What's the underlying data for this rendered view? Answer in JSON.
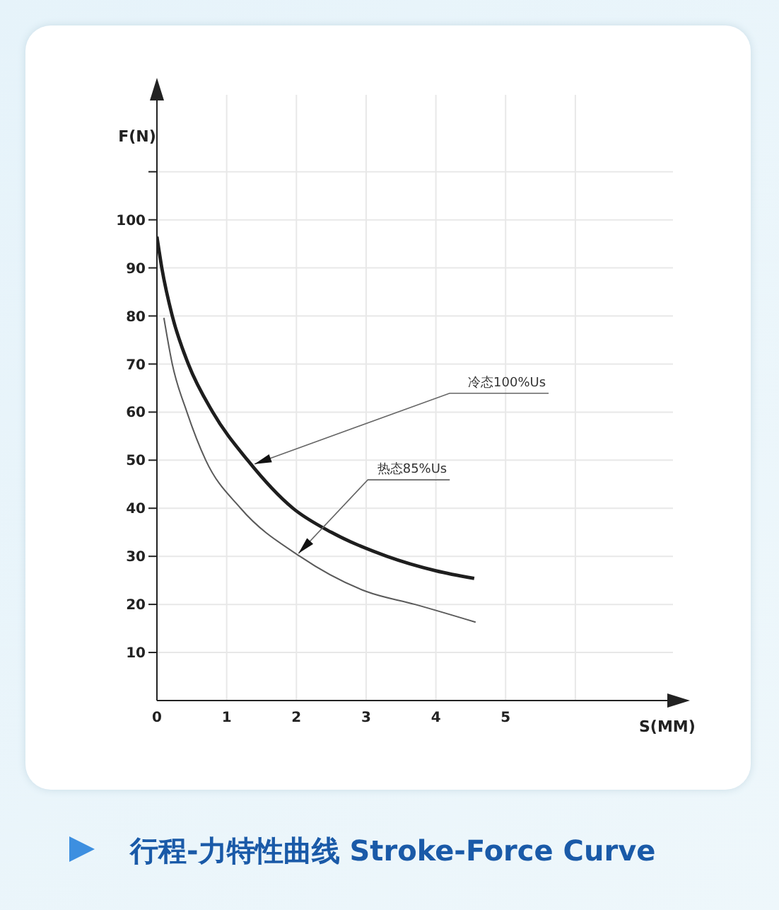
{
  "chart_data": {
    "type": "line",
    "title": "行程-力特性曲线 Stroke-Force Curve",
    "xlabel": "S(MM)",
    "ylabel": "F(N)",
    "series": [
      {
        "color": "#1e1e1e",
        "x": [
          0,
          0.07,
          0.22,
          0.45,
          0.8,
          1.3,
          1.95,
          2.5,
          3.3,
          4,
          4.55
        ],
        "values": [
          96.5,
          90,
          80,
          70,
          60,
          50,
          40,
          35,
          30,
          27,
          25.4
        ]
      },
      {
        "color": "#5a5a5a",
        "x": [
          0.1,
          0.22,
          0.43,
          0.7,
          1.2,
          2.05,
          3,
          3.7,
          4.57
        ],
        "values": [
          79.6,
          70,
          60,
          50,
          40,
          30,
          22.7,
          20,
          16.3
        ]
      }
    ],
    "xlim": [
      0,
      7.4
    ],
    "xticks": [
      0,
      1,
      2,
      3,
      4,
      5,
      {
        "value": 6,
        "label": null
      }
    ],
    "ylim": [
      0,
      126
    ],
    "yticks": [
      10,
      20,
      30,
      40,
      50,
      60,
      70,
      80,
      90,
      100,
      {
        "value": 110,
        "label": null
      }
    ],
    "grid": true,
    "legend": false,
    "marker": "none",
    "line_style": "solid",
    "annotations": [
      {
        "text": "冷态100%Us",
        "x": 1.4,
        "y": 49.2
      },
      {
        "text": "热态85%Us",
        "x": 2.03,
        "y": 30.6
      }
    ]
  }
}
